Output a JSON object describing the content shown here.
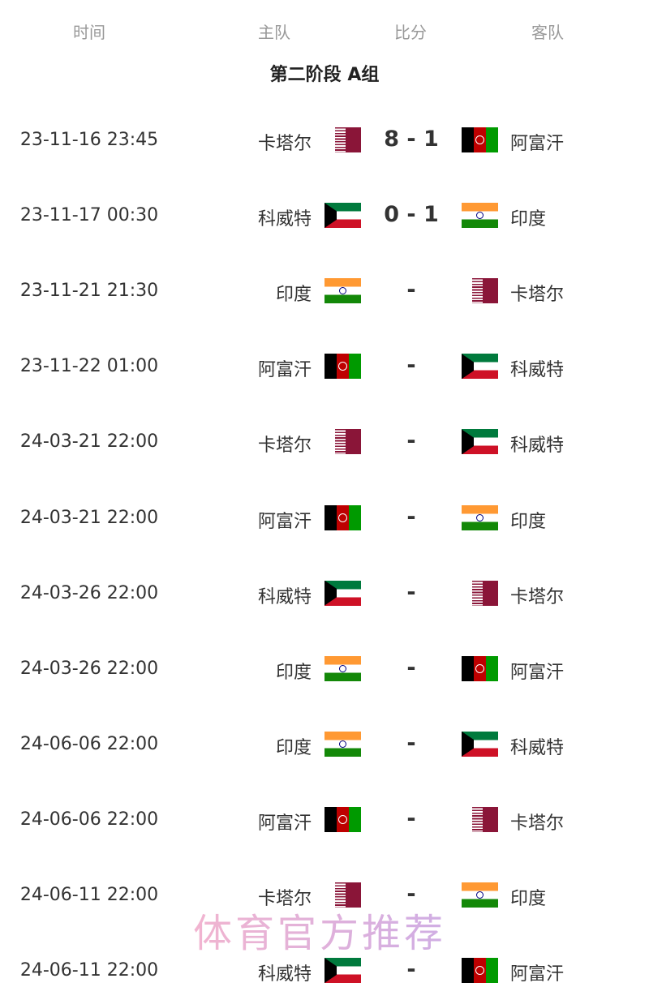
{
  "header": {
    "time": "时间",
    "home": "主队",
    "score": "比分",
    "away": "客队"
  },
  "group_title": "第二阶段 A组",
  "flag_colors": {
    "qa": "#8a1538",
    "af": "#be0000",
    "kw": "#007a3d",
    "in": "#ff9933"
  },
  "matches": [
    {
      "time": "23-11-16 23:45",
      "home": "卡塔尔",
      "home_flag": "qa",
      "score": "8 - 1",
      "away": "阿富汗",
      "away_flag": "af"
    },
    {
      "time": "23-11-17 00:30",
      "home": "科威特",
      "home_flag": "kw",
      "score": "0 - 1",
      "away": "印度",
      "away_flag": "in"
    },
    {
      "time": "23-11-21 21:30",
      "home": "印度",
      "home_flag": "in",
      "score": "-",
      "away": "卡塔尔",
      "away_flag": "qa"
    },
    {
      "time": "23-11-22 01:00",
      "home": "阿富汗",
      "home_flag": "af",
      "score": "-",
      "away": "科威特",
      "away_flag": "kw"
    },
    {
      "time": "24-03-21 22:00",
      "home": "卡塔尔",
      "home_flag": "qa",
      "score": "-",
      "away": "科威特",
      "away_flag": "kw"
    },
    {
      "time": "24-03-21 22:00",
      "home": "阿富汗",
      "home_flag": "af",
      "score": "-",
      "away": "印度",
      "away_flag": "in"
    },
    {
      "time": "24-03-26 22:00",
      "home": "科威特",
      "home_flag": "kw",
      "score": "-",
      "away": "卡塔尔",
      "away_flag": "qa"
    },
    {
      "time": "24-03-26 22:00",
      "home": "印度",
      "home_flag": "in",
      "score": "-",
      "away": "阿富汗",
      "away_flag": "af"
    },
    {
      "time": "24-06-06 22:00",
      "home": "印度",
      "home_flag": "in",
      "score": "-",
      "away": "科威特",
      "away_flag": "kw"
    },
    {
      "time": "24-06-06 22:00",
      "home": "阿富汗",
      "home_flag": "af",
      "score": "-",
      "away": "卡塔尔",
      "away_flag": "qa"
    },
    {
      "time": "24-06-11 22:00",
      "home": "卡塔尔",
      "home_flag": "qa",
      "score": "-",
      "away": "印度",
      "away_flag": "in"
    },
    {
      "time": "24-06-11 22:00",
      "home": "科威特",
      "home_flag": "kw",
      "score": "-",
      "away": "阿富汗",
      "away_flag": "af"
    }
  ],
  "watermark": "体育官方推荐"
}
